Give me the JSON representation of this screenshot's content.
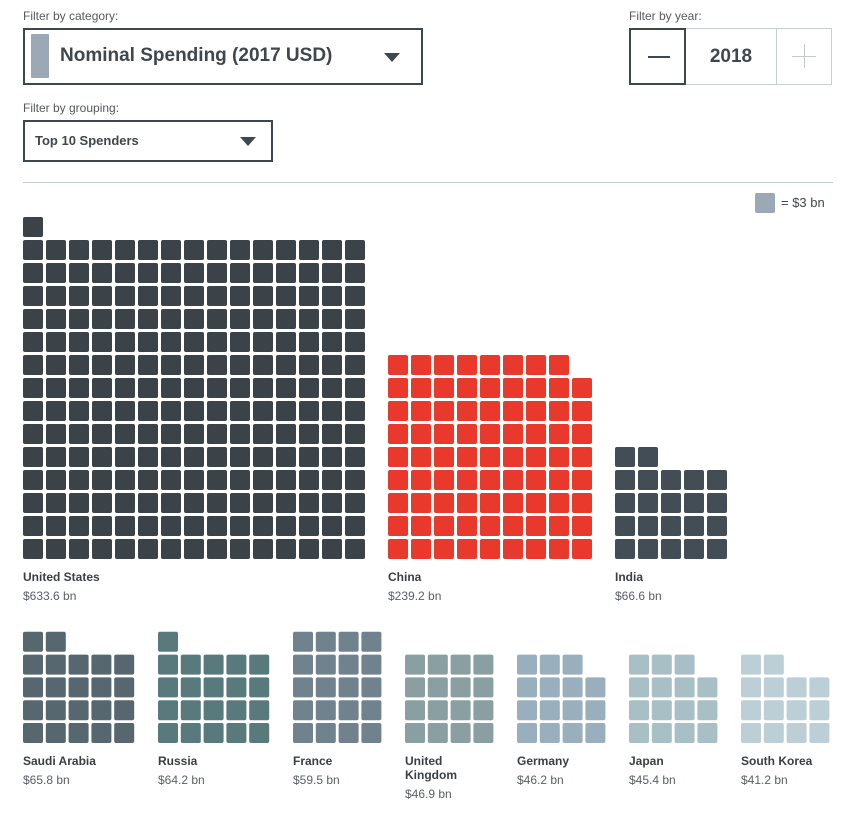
{
  "filters": {
    "category_label": "Filter by category:",
    "category_value": "Nominal Spending (2017 USD)",
    "year_label": "Filter by year:",
    "year_value": "2018",
    "grouping_label": "Filter by grouping:",
    "grouping_value": "Top 10 Spenders"
  },
  "legend": {
    "text": "= $3 bn",
    "color": "#9aa9b5"
  },
  "chart_data": {
    "type": "waffle",
    "unit_value": 3,
    "unit_label": "= $3 bn",
    "grouping": "Top 10 Spenders",
    "year": 2018,
    "series": [
      {
        "name": "United States",
        "value": 633.6,
        "value_label": "$633.6 bn",
        "squares": 211,
        "color": "#3b4348"
      },
      {
        "name": "China",
        "value": 239.2,
        "value_label": "$239.2 bn",
        "squares": 80,
        "color": "#e8392c"
      },
      {
        "name": "India",
        "value": 66.6,
        "value_label": "$66.6 bn",
        "squares": 22,
        "color": "#424d55"
      },
      {
        "name": "Saudi Arabia",
        "value": 65.8,
        "value_label": "$65.8 bn",
        "squares": 22,
        "color": "#56676f"
      },
      {
        "name": "Russia",
        "value": 64.2,
        "value_label": "$64.2 bn",
        "squares": 21,
        "color": "#597a7d"
      },
      {
        "name": "France",
        "value": 59.5,
        "value_label": "$59.5 bn",
        "squares": 20,
        "color": "#6f828e"
      },
      {
        "name": "United Kingdom",
        "value": 46.9,
        "value_label": "$46.9 bn",
        "squares": 16,
        "color": "#8a9fa2"
      },
      {
        "name": "Germany",
        "value": 46.2,
        "value_label": "$46.2 bn",
        "squares": 15,
        "color": "#9aafbd"
      },
      {
        "name": "Japan",
        "value": 45.4,
        "value_label": "$45.4 bn",
        "squares": 15,
        "color": "#a9bfc6"
      },
      {
        "name": "South Korea",
        "value": 41.2,
        "value_label": "$41.2 bn",
        "squares": 14,
        "color": "#bccfd6"
      }
    ]
  }
}
